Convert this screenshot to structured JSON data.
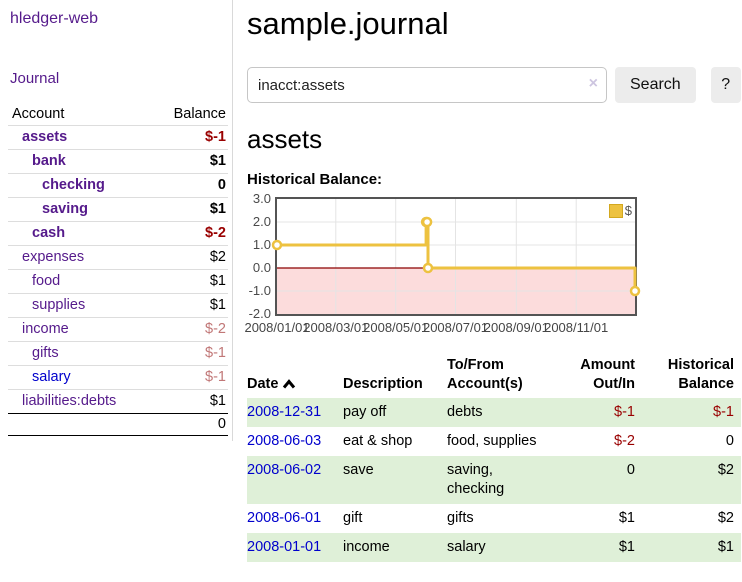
{
  "app": {
    "brand": "hledger-web"
  },
  "colors": {
    "link_purple": "#551a8b",
    "link_blue": "#0000cc",
    "negative_strong": "#990000",
    "negative_soft": "#c17777",
    "row_stripe_green": "#dff0d8",
    "series_yellow": "#edc240",
    "negative_region_pink": "#fcdcdc",
    "zero_line_red": "#8b0000"
  },
  "sidebar": {
    "journal_link": "Journal",
    "accounts_table": {
      "headers": {
        "account": "Account",
        "balance": "Balance"
      },
      "rows": [
        {
          "account": "assets",
          "balance": "$-1",
          "level": 0,
          "matched": true,
          "visited": true
        },
        {
          "account": "bank",
          "balance": "$1",
          "level": 1,
          "matched": true,
          "visited": true
        },
        {
          "account": "checking",
          "balance": "0",
          "level": 2,
          "matched": true,
          "visited": true
        },
        {
          "account": "saving",
          "balance": "$1",
          "level": 2,
          "matched": true,
          "visited": true
        },
        {
          "account": "cash",
          "balance": "$-2",
          "level": 1,
          "matched": true,
          "visited": true
        },
        {
          "account": "expenses",
          "balance": "$2",
          "level": 0,
          "matched": false,
          "visited": true
        },
        {
          "account": "food",
          "balance": "$1",
          "level": 1,
          "matched": false,
          "visited": true
        },
        {
          "account": "supplies",
          "balance": "$1",
          "level": 1,
          "matched": false,
          "visited": true
        },
        {
          "account": "income",
          "balance": "$-2",
          "level": 0,
          "matched": false,
          "visited": true
        },
        {
          "account": "gifts",
          "balance": "$-1",
          "level": 1,
          "matched": false,
          "visited": true
        },
        {
          "account": "salary",
          "balance": "$-1",
          "level": 1,
          "matched": false,
          "visited": false
        },
        {
          "account": "liabilities:debts",
          "balance": "$1",
          "level": 0,
          "matched": false,
          "visited": true
        }
      ],
      "total": "0"
    }
  },
  "main": {
    "title": "sample.journal",
    "search": {
      "value": "inacct:assets",
      "clear_icon": "×",
      "search_button": "Search",
      "help_button": "?"
    },
    "account_heading": "assets",
    "chart_title": "Historical Balance:"
  },
  "chart_data": {
    "type": "line",
    "step": true,
    "title": "Historical Balance",
    "x": [
      "2008-01-01",
      "2008-06-01",
      "2008-06-02",
      "2008-06-03",
      "2008-12-31"
    ],
    "series": [
      {
        "name": "$",
        "color": "#edc240",
        "values": [
          1,
          2,
          2,
          0,
          -1
        ]
      }
    ],
    "xlim": [
      "2008-01-01",
      "2008-12-31"
    ],
    "ylim": [
      -2,
      3
    ],
    "yticks": [
      {
        "label": "3.0",
        "value": 3
      },
      {
        "label": "2.0",
        "value": 2
      },
      {
        "label": "1.0",
        "value": 1
      },
      {
        "label": "0.0",
        "value": 0
      },
      {
        "label": "-1.0",
        "value": -1
      },
      {
        "label": "-2.0",
        "value": -2
      }
    ],
    "xticks": [
      "2008/01/01",
      "2008/03/01",
      "2008/05/01",
      "2008/07/01",
      "2008/09/01",
      "2008/11/01"
    ],
    "grid": true,
    "legend_position": "top-right",
    "legend_label": "$",
    "negative_region_color": "#fcdcdc",
    "zero_line_color": "#8b0000"
  },
  "register": {
    "headers": [
      {
        "label": "Date",
        "sortable": true,
        "sort": "asc"
      },
      {
        "label": "Description"
      },
      {
        "label": "To/From Account(s)"
      },
      {
        "label": "Amount Out/In",
        "align": "right"
      },
      {
        "label": "Historical Balance",
        "align": "right"
      }
    ],
    "rows": [
      {
        "date": "2008-12-31",
        "description": "pay off",
        "accounts": "debts",
        "amount": "$-1",
        "balance": "$-1"
      },
      {
        "date": "2008-06-03",
        "description": "eat & shop",
        "accounts": "food, supplies",
        "amount": "$-2",
        "balance": "0"
      },
      {
        "date": "2008-06-02",
        "description": "save",
        "accounts": "saving, checking",
        "amount": "0",
        "balance": "$2"
      },
      {
        "date": "2008-06-01",
        "description": "gift",
        "accounts": "gifts",
        "amount": "$1",
        "balance": "$2"
      },
      {
        "date": "2008-01-01",
        "description": "income",
        "accounts": "salary",
        "amount": "$1",
        "balance": "$1"
      }
    ]
  }
}
